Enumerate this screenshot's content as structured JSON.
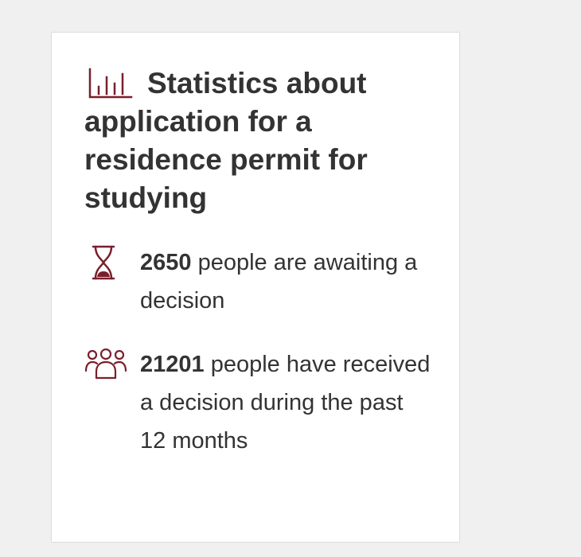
{
  "card": {
    "icon": "bar-chart-icon",
    "title": "Statistics about application for a residence permit for studying"
  },
  "stats": [
    {
      "icon": "hourglass-icon",
      "number": "2650",
      "text": " people are awaiting a decision"
    },
    {
      "icon": "people-group-icon",
      "number": "21201",
      "text": " people have received a decision during the past 12 months"
    }
  ],
  "colors": {
    "accent": "#7a1f2b",
    "text": "#333333",
    "card_background": "#ffffff",
    "page_background": "#f0f0f0"
  }
}
